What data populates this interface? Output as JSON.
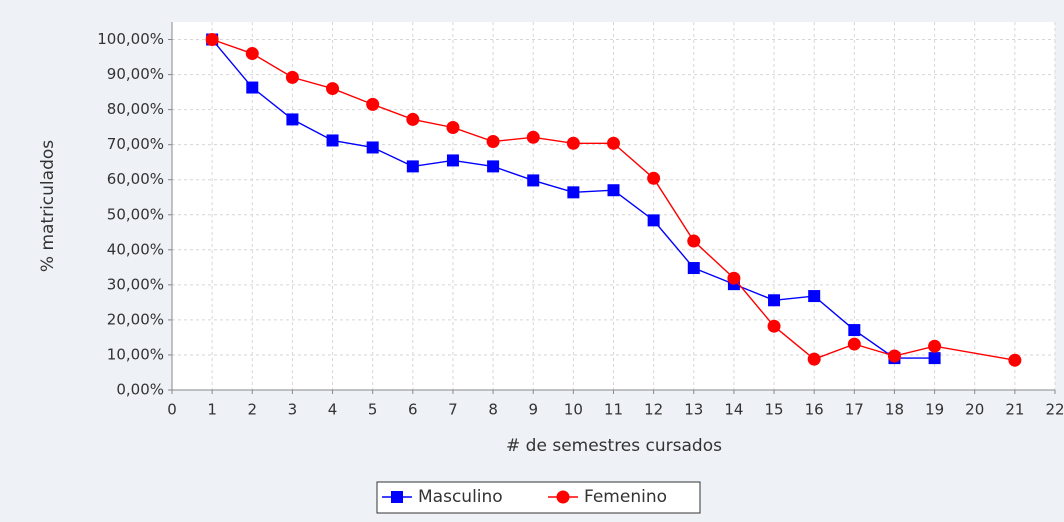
{
  "chart_data": {
    "type": "line",
    "xlabel": "# de semestres cursados",
    "ylabel": "% matriculados",
    "xlim": [
      0,
      22
    ],
    "xticks": [
      0,
      1,
      2,
      3,
      4,
      5,
      6,
      7,
      8,
      9,
      10,
      11,
      12,
      13,
      14,
      15,
      16,
      17,
      18,
      19,
      20,
      21,
      22
    ],
    "ylim": [
      0,
      105
    ],
    "yticks": [
      {
        "value": 0,
        "label": "0,00%"
      },
      {
        "value": 10,
        "label": "10,00%"
      },
      {
        "value": 20,
        "label": "20,00%"
      },
      {
        "value": 30,
        "label": "30,00%"
      },
      {
        "value": 40,
        "label": "40,00%"
      },
      {
        "value": 50,
        "label": "50,00%"
      },
      {
        "value": 60,
        "label": "60,00%"
      },
      {
        "value": 70,
        "label": "70,00%"
      },
      {
        "value": 80,
        "label": "80,00%"
      },
      {
        "value": 90,
        "label": "90,00%"
      },
      {
        "value": 100,
        "label": "100,00%"
      }
    ],
    "grid": true,
    "legend": "bottom",
    "series": [
      {
        "name": "Masculino",
        "color": "#0000ff",
        "marker": "square",
        "x": [
          1,
          2,
          3,
          4,
          5,
          6,
          7,
          8,
          9,
          10,
          11,
          12,
          13,
          14,
          15,
          16,
          17,
          18,
          19
        ],
        "values": [
          100,
          86.3,
          77.2,
          71.2,
          69.2,
          63.8,
          65.5,
          63.8,
          59.8,
          56.4,
          57.0,
          48.4,
          34.8,
          30.2,
          25.6,
          26.8,
          17.1,
          9.1,
          9.1
        ]
      },
      {
        "name": "Femenino",
        "color": "#ff0000",
        "marker": "circle",
        "x": [
          1,
          2,
          3,
          4,
          5,
          6,
          7,
          8,
          9,
          10,
          11,
          12,
          13,
          14,
          15,
          16,
          17,
          18,
          19,
          21
        ],
        "values": [
          100,
          96.0,
          89.2,
          86.0,
          81.5,
          77.2,
          74.9,
          70.9,
          72.1,
          70.4,
          70.4,
          60.4,
          42.5,
          31.9,
          18.2,
          8.8,
          13.1,
          9.7,
          12.5,
          8.5
        ]
      }
    ]
  }
}
